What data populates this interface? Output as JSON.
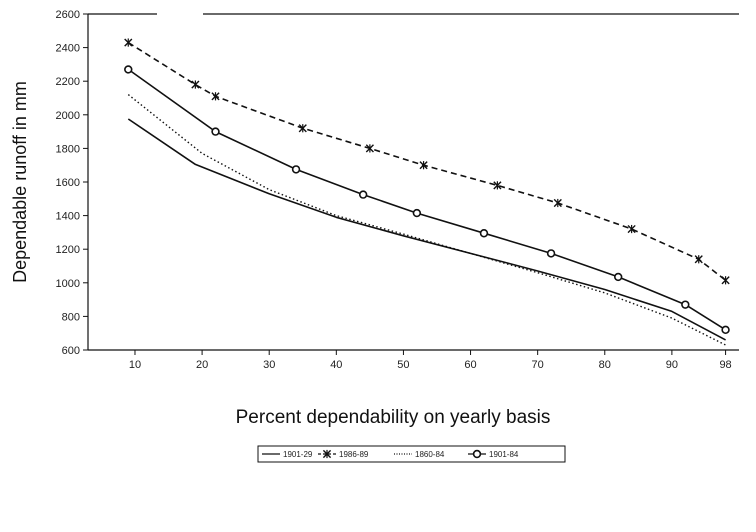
{
  "chart_data": {
    "type": "line",
    "xlabel": "Percent dependability on yearly basis",
    "ylabel": "Dependable runoff in mm",
    "xlim": [
      3,
      100
    ],
    "ylim": [
      600,
      2600
    ],
    "xticks": [
      10,
      20,
      30,
      40,
      50,
      60,
      70,
      80,
      90,
      98
    ],
    "yticks": [
      600,
      800,
      1000,
      1200,
      1400,
      1600,
      1800,
      2000,
      2200,
      2400,
      2600
    ],
    "legend": "bottom",
    "grid": false,
    "series": [
      {
        "name": "1901-29",
        "style": "solid",
        "marker": "none",
        "color": "#111111",
        "x": [
          9,
          19,
          30,
          40,
          50,
          60,
          70,
          80,
          90,
          98
        ],
        "y": [
          1975,
          1705,
          1530,
          1390,
          1280,
          1175,
          1070,
          960,
          830,
          660
        ]
      },
      {
        "name": "1986-89",
        "style": "dashed",
        "marker": "star",
        "color": "#111111",
        "x": [
          9,
          19,
          22,
          35,
          45,
          53,
          64,
          73,
          84,
          94,
          98
        ],
        "y": [
          2430,
          2180,
          2110,
          1920,
          1800,
          1700,
          1580,
          1475,
          1320,
          1140,
          1015
        ]
      },
      {
        "name": "1860-84",
        "style": "dotted",
        "marker": "none",
        "color": "#111111",
        "x": [
          9,
          20,
          30,
          40,
          50,
          60,
          70,
          80,
          90,
          98
        ],
        "y": [
          2120,
          1770,
          1555,
          1400,
          1290,
          1175,
          1060,
          940,
          790,
          630
        ]
      },
      {
        "name": "1901-84",
        "style": "solid",
        "marker": "circle",
        "color": "#111111",
        "x": [
          9,
          22,
          34,
          44,
          52,
          62,
          72,
          82,
          92,
          98
        ],
        "y": [
          2270,
          1900,
          1675,
          1525,
          1415,
          1295,
          1175,
          1035,
          870,
          720
        ]
      }
    ]
  }
}
